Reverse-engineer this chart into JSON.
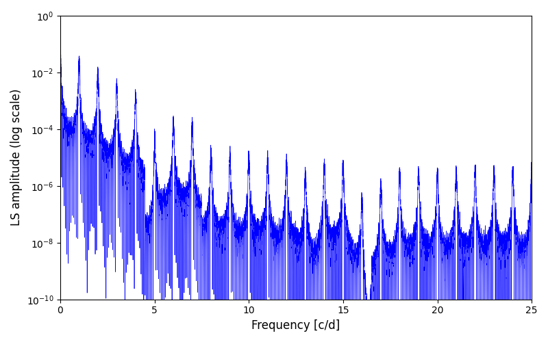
{
  "xlabel": "Frequency [c/d]",
  "ylabel": "LS amplitude (log scale)",
  "xlim": [
    0,
    25
  ],
  "line_color": "#0000ff",
  "line_width": 0.5,
  "background_color": "#ffffff",
  "figsize": [
    8.0,
    5.0
  ],
  "dpi": 100,
  "yscale": "log",
  "freq_n": 20000,
  "seed": 123
}
